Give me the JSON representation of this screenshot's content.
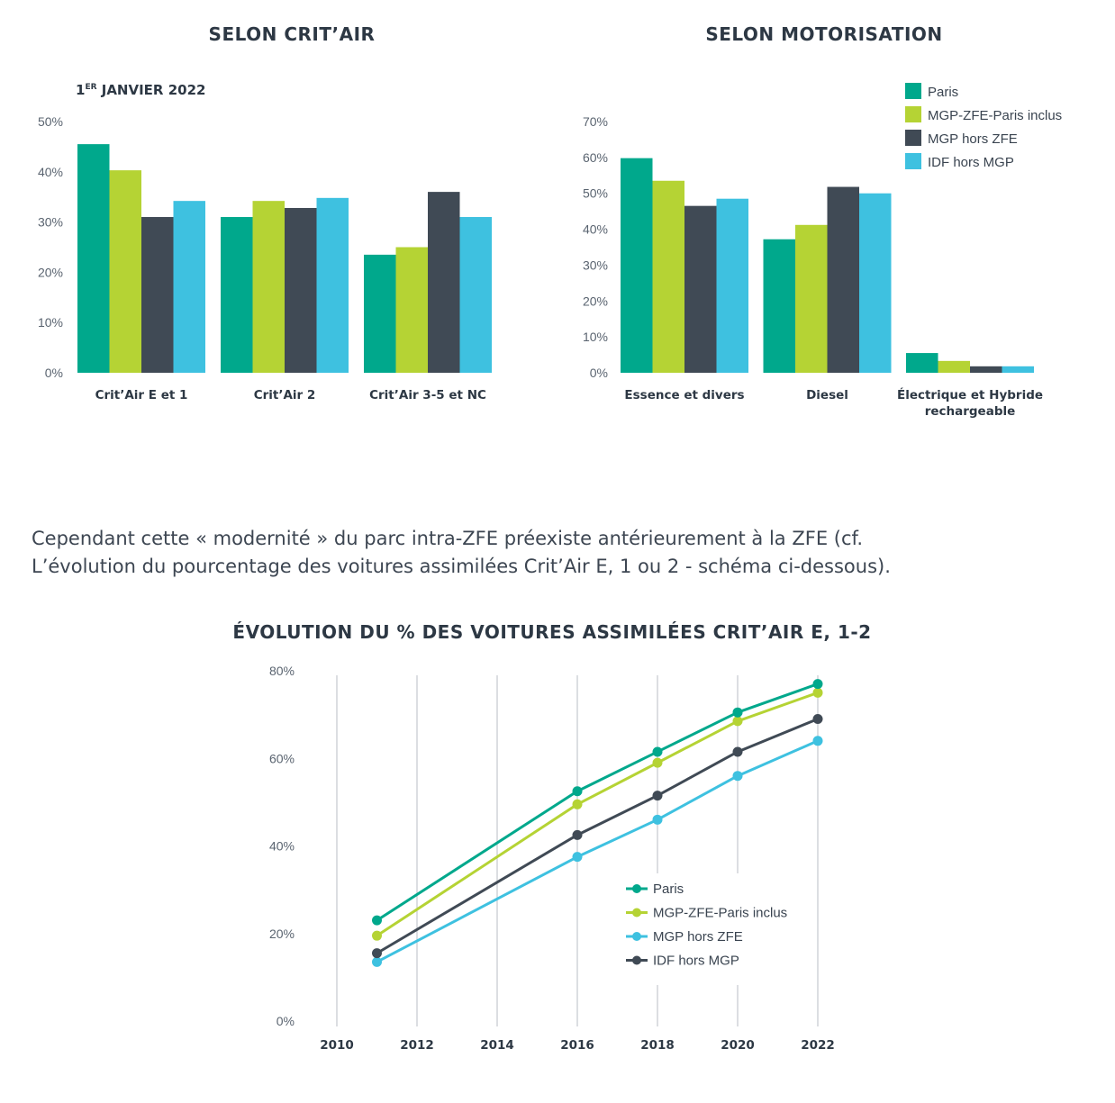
{
  "colors": {
    "paris": "#00a88c",
    "mgp_zfe": "#b5d334",
    "mgp_hors": "#404a55",
    "idf_hors": "#3ec1e0"
  },
  "paragraph": {
    "line1": "Cependant cette « modernité » du parc intra-ZFE préexiste antérieurement à la ZFE (cf.",
    "line2": "L’évolution du pourcentage des voitures assimilées Crit’Air E, 1 ou 2 - schéma ci-dessous)."
  },
  "chart_data": [
    {
      "type": "bar",
      "title": "SELON CRIT’AIR",
      "subtitle_main": "1",
      "subtitle_sup": "ER",
      "subtitle_rest": " JANVIER 2022",
      "categories": [
        "Crit’Air E et 1",
        "Crit’Air 2",
        "Crit’Air 3-5 et NC"
      ],
      "yticks": [
        "0%",
        "10%",
        "20%",
        "30%",
        "40%",
        "50%"
      ],
      "ylim": [
        0,
        50
      ],
      "series": [
        {
          "values": [
            45.5,
            31,
            23.5
          ]
        },
        {
          "values": [
            40.3,
            34.2,
            25
          ]
        },
        {
          "values": [
            31,
            32.8,
            36
          ]
        },
        {
          "values": [
            34.2,
            34.8,
            31
          ]
        }
      ]
    },
    {
      "type": "bar",
      "title": "SELON MOTORISATION",
      "categories": [
        "Essence et divers",
        "Diesel",
        "Électrique et Hybride rechargeable"
      ],
      "category_lines": [
        [
          "Essence et divers"
        ],
        [
          "Diesel"
        ],
        [
          "Électrique et Hybride",
          "rechargeable"
        ]
      ],
      "yticks": [
        "0%",
        "10%",
        "20%",
        "30%",
        "40%",
        "50%",
        "60%",
        "70%"
      ],
      "ylim": [
        0,
        70
      ],
      "legend": [
        "Paris",
        "MGP-ZFE-Paris inclus",
        "MGP hors ZFE",
        "IDF hors MGP"
      ],
      "legend_position": "top-right",
      "series": [
        {
          "name": "Paris",
          "values": [
            59.8,
            37.2,
            5.5
          ]
        },
        {
          "name": "MGP-ZFE-Paris inclus",
          "values": [
            53.5,
            41.2,
            3.3
          ]
        },
        {
          "name": "MGP hors ZFE",
          "values": [
            46.5,
            51.8,
            1.8
          ]
        },
        {
          "name": "IDF hors MGP",
          "values": [
            48.5,
            50,
            1.8
          ]
        }
      ]
    },
    {
      "type": "line",
      "title": "ÉVOLUTION DU % DES VOITURES ASSIMILÉES CRIT’AIR E, 1-2",
      "x": [
        2011,
        2016,
        2018,
        2020,
        2022
      ],
      "xticks": [
        "2010",
        "2012",
        "2014",
        "2016",
        "2018",
        "2020",
        "2022"
      ],
      "yticks": [
        "0%",
        "20%",
        "40%",
        "60%",
        "80%"
      ],
      "xlim": [
        2010,
        2022
      ],
      "ylim": [
        0,
        80
      ],
      "grid": "vertical",
      "legend_position": "center-right",
      "series": [
        {
          "name": "Paris",
          "color_key": "paris",
          "values": [
            23,
            52.5,
            61.5,
            70.5,
            77
          ]
        },
        {
          "name": "MGP-ZFE-Paris inclus",
          "color_key": "mgp_zfe",
          "values": [
            19.5,
            49.5,
            59,
            68.5,
            75
          ]
        },
        {
          "name": "MGP hors ZFE",
          "color_key": "idf_hors",
          "values": [
            13.5,
            37.5,
            46,
            56,
            64
          ]
        },
        {
          "name": "IDF hors MGP",
          "color_key": "mgp_hors",
          "values": [
            15.5,
            42.5,
            51.5,
            61.5,
            69
          ]
        }
      ]
    }
  ]
}
